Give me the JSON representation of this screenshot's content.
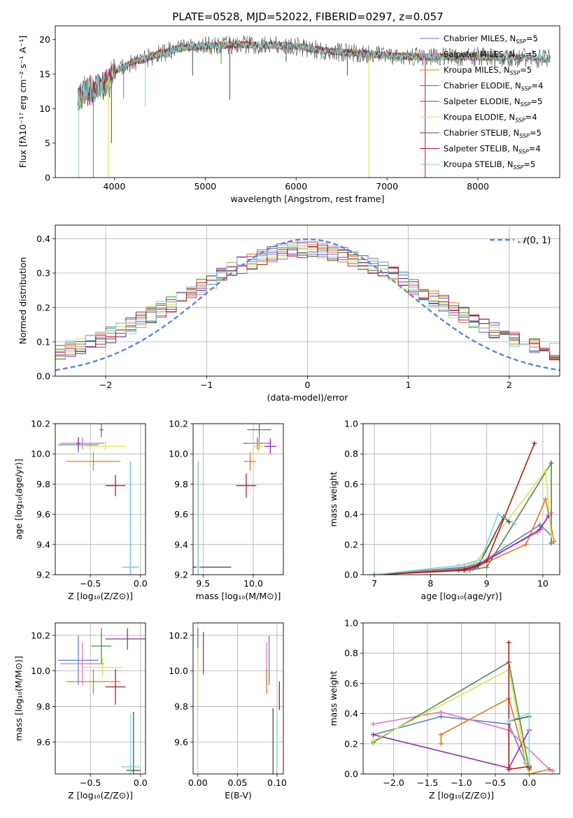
{
  "figure": {
    "title": "PLATE=0528, MJD=52022, FIBERID=0297, z=0.057"
  },
  "chart_data": [
    {
      "id": "spectrum",
      "type": "line",
      "xlabel": "wavelength [Angstrom, rest frame]",
      "ylabel": "Flux [fλ10⁻¹⁷ erg cm⁻² s⁻¹ A⁻¹]",
      "xlim": [
        3350,
        8900
      ],
      "ylim": [
        0,
        22
      ],
      "xticks": [
        4000,
        5000,
        6000,
        7000,
        8000
      ],
      "yticks": [
        0,
        5,
        10,
        15,
        20
      ],
      "grid": false,
      "legend": "top-right",
      "legend_entries": [
        {
          "label": "Chabrier MILES, N",
          "sub": "SSP",
          "suffix": "=5",
          "color": "#5b7fd1"
        },
        {
          "label": "Salpeter MILES, N",
          "sub": "SSP",
          "suffix": "=5",
          "color": "#e377c2"
        },
        {
          "label": "Kroupa MILES, N",
          "sub": "SSP",
          "suffix": "=5",
          "color": "#e07b1a"
        },
        {
          "label": "Chabrier ELODIE, N",
          "sub": "SSP",
          "suffix": "=4",
          "color": "#4e8a4e"
        },
        {
          "label": "Salpeter ELODIE, N",
          "sub": "SSP",
          "suffix": "=5",
          "color": "#9c27b0"
        },
        {
          "label": "Kroupa ELODIE, N",
          "sub": "SSP",
          "suffix": "=4",
          "color": "#d7e84a"
        },
        {
          "label": "Chabrier STELIB, N",
          "sub": "SSP",
          "suffix": "=5",
          "color": "#4d4d4d"
        },
        {
          "label": "Salpeter STELIB, N",
          "sub": "SSP",
          "suffix": "=4",
          "color": "#b71c1c"
        },
        {
          "label": "Kroupa STELIB, N",
          "sub": "SSP",
          "suffix": "=5",
          "color": "#7fd6dc"
        }
      ],
      "envelope": {
        "x": [
          3600,
          3700,
          3800,
          3900,
          4000,
          4100,
          4200,
          4300,
          4400,
          4500,
          4600,
          4700,
          4800,
          4900,
          5000,
          5200,
          5400,
          5600,
          5800,
          6000,
          6200,
          6400,
          6600,
          6800,
          7000,
          7200,
          7400,
          7600,
          7800,
          8000,
          8200,
          8400,
          8600,
          8800
        ],
        "y": [
          11.5,
          12.5,
          13.0,
          13.5,
          15.5,
          16.0,
          16.8,
          17.0,
          17.5,
          18.0,
          18.3,
          18.7,
          18.9,
          19.0,
          19.1,
          19.2,
          19.3,
          19.2,
          19.2,
          19.0,
          18.6,
          18.3,
          18.1,
          17.9,
          17.7,
          17.6,
          17.5,
          17.5,
          17.5,
          17.5,
          17.4,
          17.4,
          17.3,
          17.2
        ]
      },
      "absorption_lines": [
        {
          "x": 3610,
          "y": 0,
          "color": "#7fd6dc"
        },
        {
          "x": 3770,
          "y": 0,
          "color": "#5b7fd1"
        },
        {
          "x": 3933,
          "y": 0,
          "color": "#d7e84a"
        },
        {
          "x": 3968,
          "y": 5,
          "color": "#b71c1c"
        },
        {
          "x": 4102,
          "y": 11.5,
          "color": "#5b7fd1"
        },
        {
          "x": 4340,
          "y": 10.3,
          "color": "#7fd6dc"
        },
        {
          "x": 4861,
          "y": 14.8,
          "color": "#4d4d4d"
        },
        {
          "x": 5175,
          "y": 16.5,
          "color": "#4e8a4e"
        },
        {
          "x": 5270,
          "y": 11.3,
          "color": "#4d4d4d"
        },
        {
          "x": 5890,
          "y": 16.8,
          "color": "#4d4d4d"
        },
        {
          "x": 6563,
          "y": 14.8,
          "color": "#4d4d4d"
        },
        {
          "x": 6800,
          "y": 0,
          "color": "#d7e84a"
        },
        {
          "x": 7420,
          "y": 0,
          "color": "#b71c1c"
        }
      ]
    },
    {
      "id": "residuals",
      "type": "bar",
      "xlabel": "(data-model)/error",
      "ylabel": "Normed distribution",
      "xlim": [
        -2.5,
        2.5
      ],
      "ylim": [
        0,
        0.44
      ],
      "xticks": [
        -2,
        -1,
        0,
        1,
        2
      ],
      "xticklabels": [
        "−2",
        "−1",
        "0",
        "1",
        "2"
      ],
      "yticks": [
        0.0,
        0.1,
        0.2,
        0.3,
        0.4
      ],
      "yticklabels": [
        "0.0",
        "0.1",
        "0.2",
        "0.3",
        "0.4"
      ],
      "grid": true,
      "legend": "top-right",
      "legend_label": "(0, 1)",
      "legend_color": "#5b87d6",
      "bin_width": 0.1
    },
    {
      "id": "age-vs-Z",
      "type": "scatter",
      "xlabel": "Z [log₁₀(Z/Z⊙)]",
      "ylabel": "age  [log₁₀(age/yr)]",
      "xlim": [
        -0.85,
        0.05
      ],
      "ylim": [
        9.2,
        10.2
      ],
      "xticks": [
        -0.5,
        0.0
      ],
      "xticklabels": [
        "−0.5",
        "0.0"
      ],
      "yticks": [
        9.2,
        9.4,
        9.6,
        9.8,
        10.0,
        10.2
      ],
      "yticklabels": [
        "9.2",
        "9.4",
        "9.6",
        "9.8",
        "10.0",
        "10.2"
      ],
      "grid": true,
      "points": [
        {
          "x": -0.62,
          "y": 10.06,
          "xerr": 0.2,
          "yerr": 0.05,
          "color": "#5b7fd1"
        },
        {
          "x": -0.58,
          "y": 10.07,
          "xerr": 0.22,
          "yerr": 0.04,
          "color": "#e377c2"
        },
        {
          "x": -0.47,
          "y": 9.95,
          "xerr": 0.27,
          "yerr": 0.06,
          "color": "#e07b1a"
        },
        {
          "x": -0.39,
          "y": 10.16,
          "xerr": 0.02,
          "yerr": 0.05,
          "color": "#4e8a4e"
        },
        {
          "x": -0.62,
          "y": 10.07,
          "xerr": 0.02,
          "yerr": 0.04,
          "color": "#9c27b0"
        },
        {
          "x": -0.35,
          "y": 10.05,
          "xerr": 0.2,
          "yerr": 0.03,
          "color": "#d7e84a"
        },
        {
          "x": -0.1,
          "y": 9.25,
          "xerr": 0.07,
          "yerr": 0.7,
          "color": "#4d4d4d"
        },
        {
          "x": -0.25,
          "y": 9.79,
          "xerr": 0.1,
          "yerr": 0.07,
          "color": "#b71c1c"
        },
        {
          "x": -0.1,
          "y": 9.25,
          "xerr": 0.09,
          "yerr": 0.7,
          "color": "#7fd6dc"
        }
      ]
    },
    {
      "id": "age-vs-mass",
      "type": "scatter",
      "xlabel": "mass [log₁₀(M/M⊙)]",
      "ylabel": "",
      "xlim": [
        9.4,
        10.3
      ],
      "ylim": [
        9.2,
        10.2
      ],
      "xticks": [
        9.5,
        10.0
      ],
      "xticklabels": [
        "9.5",
        "10.0"
      ],
      "yticks": [
        9.2,
        9.4,
        9.6,
        9.8,
        10.0,
        10.2
      ],
      "yticklabels": [
        "9.2",
        "9.4",
        "9.6",
        "9.8",
        "10.0",
        "10.2"
      ],
      "grid": true,
      "points": [
        {
          "x": 10.04,
          "y": 10.07,
          "xerr": 0.14,
          "yerr": 0.04,
          "color": "#5b7fd1"
        },
        {
          "x": 10.06,
          "y": 10.07,
          "xerr": 0.12,
          "yerr": 0.04,
          "color": "#e377c2"
        },
        {
          "x": 9.97,
          "y": 9.95,
          "xerr": 0.06,
          "yerr": 0.06,
          "color": "#e07b1a"
        },
        {
          "x": 10.06,
          "y": 10.16,
          "xerr": 0.12,
          "yerr": 0.05,
          "color": "#4e8a4e"
        },
        {
          "x": 10.17,
          "y": 10.05,
          "xerr": 0.06,
          "yerr": 0.05,
          "color": "#9c27b0"
        },
        {
          "x": 10.05,
          "y": 10.05,
          "xerr": 0.05,
          "yerr": 0.05,
          "color": "#d7e84a"
        },
        {
          "x": 9.45,
          "y": 9.25,
          "xerr": 0.33,
          "yerr": 0.7,
          "color": "#4d4d4d"
        },
        {
          "x": 9.93,
          "y": 9.79,
          "xerr": 0.1,
          "yerr": 0.08,
          "color": "#b71c1c"
        },
        {
          "x": 9.45,
          "y": 9.25,
          "xerr": 0.02,
          "yerr": 0.7,
          "color": "#7fd6dc"
        }
      ]
    },
    {
      "id": "massweight-vs-age",
      "type": "line",
      "xlabel": "age  [log₁₀(age/yr)]",
      "ylabel": "mass weight",
      "xlim": [
        6.8,
        10.3
      ],
      "ylim": [
        0,
        1
      ],
      "xticks": [
        7,
        8,
        9,
        10
      ],
      "xticklabels": [
        "7",
        "8",
        "9",
        "10"
      ],
      "yticks": [
        0.0,
        0.2,
        0.4,
        0.6,
        0.8,
        1.0
      ],
      "yticklabels": [
        "0.0",
        "0.2",
        "0.4",
        "0.6",
        "0.8",
        "1.0"
      ],
      "grid": true,
      "series": [
        {
          "color": "#5b7fd1",
          "x": [
            7.0,
            8.6,
            8.9,
            9.95,
            10.15
          ],
          "y": [
            0.0,
            0.05,
            0.08,
            0.33,
            0.26
          ]
        },
        {
          "color": "#e377c2",
          "x": [
            7.0,
            8.5,
            8.8,
            9.9,
            10.15
          ],
          "y": [
            0.0,
            0.04,
            0.06,
            0.28,
            0.41
          ]
        },
        {
          "color": "#e07b1a",
          "x": [
            7.0,
            8.6,
            8.75,
            9.7,
            10.05,
            10.2
          ],
          "y": [
            0.0,
            0.04,
            0.04,
            0.2,
            0.5,
            0.22
          ]
        },
        {
          "color": "#4e8a4e",
          "x": [
            7.0,
            8.7,
            9.0,
            10.15,
            10.15
          ],
          "y": [
            0.0,
            0.03,
            0.05,
            0.74,
            0.21
          ]
        },
        {
          "color": "#9c27b0",
          "x": [
            7.0,
            8.6,
            8.8,
            9.95,
            10.1
          ],
          "y": [
            0.0,
            0.03,
            0.05,
            0.3,
            0.39
          ]
        },
        {
          "color": "#d7e84a",
          "x": [
            7.0,
            8.5,
            8.8,
            10.05,
            10.15
          ],
          "y": [
            0.0,
            0.06,
            0.08,
            0.69,
            0.26
          ]
        },
        {
          "color": "#4d4d4d",
          "x": [
            7.0,
            8.5,
            8.85,
            9.3,
            9.4
          ],
          "y": [
            0.0,
            0.03,
            0.06,
            0.38,
            0.35
          ]
        },
        {
          "color": "#b71c1c",
          "x": [
            7.0,
            8.6,
            9.0,
            9.85
          ],
          "y": [
            0.0,
            0.03,
            0.09,
            0.87
          ]
        },
        {
          "color": "#7fd6dc",
          "x": [
            7.0,
            8.5,
            8.9,
            9.2,
            9.5
          ],
          "y": [
            0.0,
            0.06,
            0.1,
            0.4,
            0.34
          ]
        }
      ]
    },
    {
      "id": "mass-vs-Z",
      "type": "scatter",
      "xlabel": "Z [log₁₀(Z/Z⊙)]",
      "ylabel": "mass [log₁₀(M/M⊙)]",
      "xlim": [
        -0.85,
        0.05
      ],
      "ylim": [
        9.42,
        10.27
      ],
      "xticks": [
        -0.5,
        0.0
      ],
      "xticklabels": [
        "−0.5",
        "0.0"
      ],
      "yticks": [
        9.6,
        9.8,
        10.0,
        10.2
      ],
      "yticklabels": [
        "9.6",
        "9.8",
        "10.0",
        "10.2"
      ],
      "grid": true,
      "points": [
        {
          "x": -0.62,
          "y": 10.06,
          "xerr": 0.2,
          "yerr": 0.14,
          "color": "#5b7fd1"
        },
        {
          "x": -0.58,
          "y": 10.04,
          "xerr": 0.22,
          "yerr": 0.12,
          "color": "#e377c2"
        },
        {
          "x": -0.47,
          "y": 9.94,
          "xerr": 0.27,
          "yerr": 0.07,
          "color": "#e07b1a"
        },
        {
          "x": -0.39,
          "y": 10.14,
          "xerr": 0.1,
          "yerr": 0.1,
          "color": "#4e8a4e"
        },
        {
          "x": -0.13,
          "y": 10.18,
          "xerr": 0.22,
          "yerr": 0.06,
          "color": "#9c27b0"
        },
        {
          "x": -0.38,
          "y": 10.02,
          "xerr": 0.2,
          "yerr": 0.05,
          "color": "#d7e84a"
        },
        {
          "x": -0.07,
          "y": 9.44,
          "xerr": 0.07,
          "yerr": 0.33,
          "color": "#4d4d4d"
        },
        {
          "x": -0.25,
          "y": 9.91,
          "xerr": 0.1,
          "yerr": 0.1,
          "color": "#b71c1c"
        },
        {
          "x": -0.1,
          "y": 9.46,
          "xerr": 0.09,
          "yerr": 0.3,
          "color": "#7fd6dc"
        }
      ]
    },
    {
      "id": "mass-vs-ebv",
      "type": "scatter",
      "xlabel": "E(B-V)",
      "ylabel": "",
      "xlim": [
        -0.006,
        0.108
      ],
      "ylim": [
        9.42,
        10.27
      ],
      "xticks": [
        0.0,
        0.05,
        0.1
      ],
      "xticklabels": [
        "0.00",
        "0.05",
        "0.10"
      ],
      "yticks": [
        9.6,
        9.8,
        10.0,
        10.2
      ],
      "yticklabels": [
        "9.6",
        "9.8",
        "10.0",
        "10.2"
      ],
      "grid": true,
      "points": [
        {
          "x": 0.09,
          "y": 10.06,
          "yerr": 0.14,
          "color": "#5b7fd1"
        },
        {
          "x": 0.087,
          "y": 10.04,
          "yerr": 0.12,
          "color": "#e377c2"
        },
        {
          "x": 0.087,
          "y": 9.94,
          "yerr": 0.07,
          "color": "#e07b1a"
        },
        {
          "x": 0.0,
          "y": 10.14,
          "yerr": 0.1,
          "color": "#4e8a4e"
        },
        {
          "x": 0.007,
          "y": 10.1,
          "yerr": 0.12,
          "color": "#9c27b0"
        },
        {
          "x": 0.0,
          "y": 9.98,
          "yerr": 0.15,
          "color": "#d7e84a"
        },
        {
          "x": 0.095,
          "y": 9.57,
          "yerr": 0.22,
          "color": "#4d4d4d"
        },
        {
          "x": 0.103,
          "y": 9.86,
          "yerr": 0.08,
          "color": "#b71c1c"
        },
        {
          "x": 0.1,
          "y": 9.46,
          "yerr": 0.3,
          "color": "#7fd6dc"
        }
      ]
    },
    {
      "id": "massweight-vs-Z",
      "type": "line",
      "xlabel": "Z [log₁₀(Z/Z⊙)]",
      "ylabel": "mass weight",
      "xlim": [
        -2.45,
        0.45
      ],
      "ylim": [
        0,
        1
      ],
      "xticks": [
        -2.0,
        -1.5,
        -1.0,
        -0.5,
        0.0
      ],
      "xticklabels": [
        "−2.0",
        "−1.5",
        "−1.0",
        "−0.5",
        "0.0"
      ],
      "yticks": [
        0.0,
        0.2,
        0.4,
        0.6,
        0.8,
        1.0
      ],
      "yticklabels": [
        "0.0",
        "0.2",
        "0.4",
        "0.6",
        "0.8",
        "1.0"
      ],
      "grid": true,
      "series": [
        {
          "color": "#5b7fd1",
          "x": [
            -2.3,
            -1.3,
            -0.3,
            -0.05,
            0.0
          ],
          "y": [
            0.26,
            0.38,
            0.33,
            0.07,
            0.04
          ]
        },
        {
          "color": "#e377c2",
          "x": [
            -2.3,
            -1.3,
            -0.3,
            0.3,
            0.35
          ],
          "y": [
            0.33,
            0.41,
            0.29,
            0.03,
            0.02
          ]
        },
        {
          "color": "#e07b1a",
          "x": [
            -1.3,
            -1.3,
            -0.3,
            0.0,
            0.3
          ],
          "y": [
            0.2,
            0.26,
            0.5,
            0.0,
            0.03
          ]
        },
        {
          "color": "#4e8a4e",
          "x": [
            -2.3,
            -0.3,
            0.0,
            0.0
          ],
          "y": [
            0.21,
            0.74,
            0.03,
            0.05
          ]
        },
        {
          "color": "#9c27b0",
          "x": [
            -2.3,
            -0.3,
            0.0
          ],
          "y": [
            0.26,
            0.04,
            0.29
          ]
        },
        {
          "color": "#d7e84a",
          "x": [
            -2.3,
            -0.3,
            -0.05,
            0.0
          ],
          "y": [
            0.22,
            0.69,
            0.08,
            0.0
          ]
        },
        {
          "color": "#4d4d4d",
          "x": [
            -0.3,
            -0.3,
            0.0
          ],
          "y": [
            0.03,
            0.35,
            0.38
          ]
        },
        {
          "color": "#b71c1c",
          "x": [
            -0.3,
            -0.3,
            0.0,
            0.0
          ],
          "y": [
            0.87,
            0.03,
            0.05,
            0.04
          ]
        },
        {
          "color": "#7fd6dc",
          "x": [
            -0.3,
            0.0,
            0.0
          ],
          "y": [
            0.35,
            0.4,
            0.06
          ]
        }
      ]
    }
  ]
}
